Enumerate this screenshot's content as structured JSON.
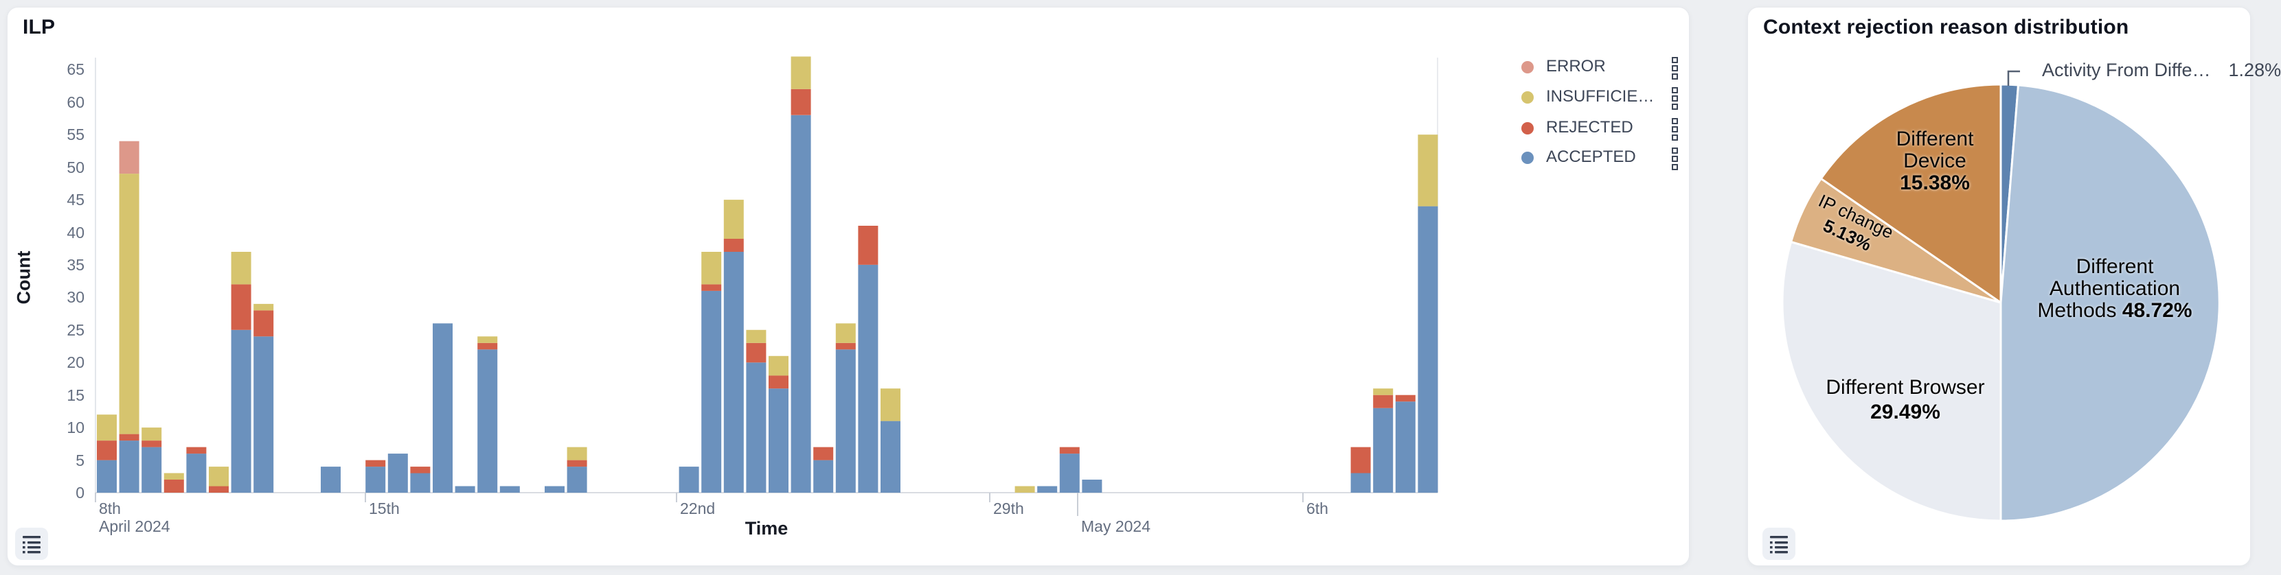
{
  "page": {
    "background": "#edeff2"
  },
  "ilp_panel": {
    "title": "ILP",
    "y_axis_label": "Count",
    "x_axis_label": "Time",
    "legend": [
      {
        "label": "ERROR",
        "color": "#dd988a"
      },
      {
        "label": "INSUFFICIE…",
        "color": "#d6c46e"
      },
      {
        "label": "REJECTED",
        "color": "#d2604a"
      },
      {
        "label": "ACCEPTED",
        "color": "#6b91bd"
      }
    ],
    "list_button": "legend-list-toggle"
  },
  "pie_panel": {
    "title": "Context rejection reason distribution",
    "list_button": "legend-list-toggle"
  },
  "chart_data": [
    {
      "type": "bar",
      "title": "ILP",
      "xlabel": "Time",
      "ylabel": "Count",
      "ylim": [
        0,
        65
      ],
      "y_ticks": [
        0,
        5,
        10,
        15,
        20,
        25,
        30,
        35,
        40,
        45,
        50,
        55,
        60,
        65
      ],
      "x_ticks": [
        {
          "x": 128,
          "line1": "8th",
          "line2": "April 2024",
          "long": false
        },
        {
          "x": 521,
          "line1": "15th",
          "line2": "",
          "long": false
        },
        {
          "x": 974,
          "line1": "22nd",
          "line2": "",
          "long": false
        },
        {
          "x": 1430,
          "line1": "29th",
          "line2": "",
          "long": false
        },
        {
          "x": 1558,
          "line1": "",
          "line2": "May 2024",
          "long": true
        },
        {
          "x": 1886,
          "line1": "6th",
          "line2": "",
          "long": false
        }
      ],
      "stack_order": [
        "ACCEPTED",
        "REJECTED",
        "INSUFFICIENT",
        "ERROR"
      ],
      "series_colors": {
        "ACCEPTED": "#6b91bd",
        "REJECTED": "#d2604a",
        "INSUFFICIENT": "#d6c46e",
        "ERROR": "#dd988a"
      },
      "note": "bars are half-day time buckets, Apr 8 - May 10 2024; values = [slot, ACCEPTED, REJECTED, INSUFFICIENT, ERROR]",
      "bars": [
        [
          0,
          5,
          3,
          4,
          0
        ],
        [
          1,
          8,
          1,
          40,
          5
        ],
        [
          2,
          7,
          1,
          2,
          0
        ],
        [
          3,
          0,
          2,
          1,
          0
        ],
        [
          4,
          6,
          1,
          0,
          0
        ],
        [
          5,
          0,
          1,
          3,
          0
        ],
        [
          6,
          25,
          7,
          5,
          0
        ],
        [
          7,
          24,
          4,
          1,
          0
        ],
        [
          10,
          4,
          0,
          0,
          0
        ],
        [
          12,
          4,
          1,
          0,
          0
        ],
        [
          13,
          6,
          0,
          0,
          0
        ],
        [
          14,
          3,
          1,
          0,
          0
        ],
        [
          15,
          26,
          0,
          0,
          0
        ],
        [
          16,
          1,
          0,
          0,
          0
        ],
        [
          17,
          22,
          1,
          1,
          0
        ],
        [
          18,
          1,
          0,
          0,
          0
        ],
        [
          20,
          1,
          0,
          0,
          0
        ],
        [
          21,
          4,
          1,
          2,
          0
        ],
        [
          26,
          4,
          0,
          0,
          0
        ],
        [
          27,
          31,
          1,
          5,
          0
        ],
        [
          28,
          37,
          2,
          6,
          0
        ],
        [
          29,
          20,
          3,
          2,
          0
        ],
        [
          30,
          16,
          2,
          3,
          0
        ],
        [
          31,
          58,
          4,
          5,
          0
        ],
        [
          32,
          5,
          2,
          0,
          0
        ],
        [
          33,
          22,
          1,
          3,
          0
        ],
        [
          34,
          35,
          6,
          0,
          0
        ],
        [
          35,
          11,
          0,
          5,
          0
        ],
        [
          41,
          0,
          0,
          1,
          0
        ],
        [
          42,
          1,
          0,
          0,
          0
        ],
        [
          43,
          6,
          1,
          0,
          0
        ],
        [
          44,
          2,
          0,
          0,
          0
        ],
        [
          56,
          3,
          4,
          0,
          0
        ],
        [
          57,
          13,
          2,
          1,
          0
        ],
        [
          58,
          14,
          1,
          0,
          0
        ],
        [
          59,
          44,
          0,
          11,
          0
        ]
      ]
    },
    {
      "type": "pie",
      "title": "Context rejection reason distribution",
      "start_angle_deg": 0,
      "direction": "clockwise-from-top",
      "slices": [
        {
          "label": "Activity From Diffe…",
          "pct": 1.28,
          "color": "#5d83b0",
          "label_pos": "outside"
        },
        {
          "label": "Different Authentication Methods",
          "pct": 48.72,
          "color": "#aec3da",
          "label_pos": "inside"
        },
        {
          "label": "Different Browser",
          "pct": 29.49,
          "color": "#e9ecf2",
          "label_pos": "inside"
        },
        {
          "label": "IP change",
          "pct": 5.13,
          "color": "#dcb183",
          "label_pos": "inside-rotated"
        },
        {
          "label": "Different Device",
          "pct": 15.38,
          "color": "#c8894d",
          "label_pos": "inside"
        }
      ],
      "labels": {
        "device": {
          "lines": [
            "Different",
            "Device"
          ],
          "pct": "15.38%"
        },
        "ip": {
          "lines": [
            "IP change"
          ],
          "pct": "5.13%"
        },
        "browser": {
          "lines": [
            "Different Browser"
          ],
          "pct": "29.49%"
        },
        "auth": {
          "lines": [
            "Different",
            "Authentication",
            "Methods"
          ],
          "pct": "48.72%"
        },
        "activity": {
          "text": "Activity From Diffe…",
          "pct": "1.28%"
        }
      }
    }
  ]
}
